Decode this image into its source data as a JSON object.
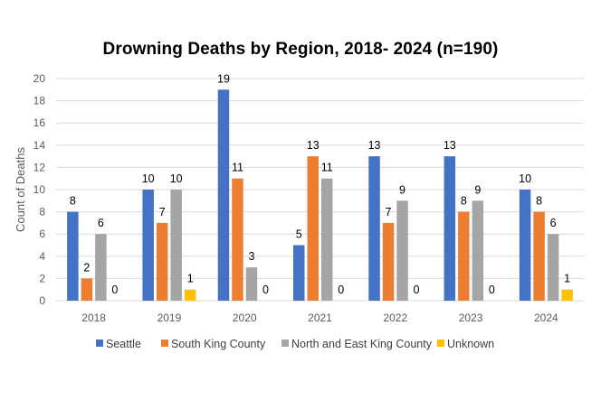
{
  "chart_data": {
    "type": "bar",
    "title": "Drowning Deaths by Region,  2018- 2024 (n=190)",
    "xlabel": "",
    "ylabel": "Count of Deaths",
    "ylim": [
      0,
      20
    ],
    "yticks": [
      0,
      2,
      4,
      6,
      8,
      10,
      12,
      14,
      16,
      18,
      20
    ],
    "grid": true,
    "legend_position": "bottom",
    "categories": [
      "2018",
      "2019",
      "2020",
      "2021",
      "2022",
      "2023",
      "2024"
    ],
    "series": [
      {
        "name": "Seattle",
        "color": "#4472C4",
        "values": [
          8,
          10,
          19,
          5,
          13,
          13,
          10
        ]
      },
      {
        "name": "South King County",
        "color": "#ED7D31",
        "values": [
          2,
          7,
          11,
          13,
          7,
          8,
          8
        ]
      },
      {
        "name": "North and East King County",
        "color": "#A5A5A5",
        "values": [
          6,
          10,
          3,
          11,
          9,
          9,
          6
        ]
      },
      {
        "name": "Unknown",
        "color": "#FFC000",
        "values": [
          0,
          1,
          0,
          0,
          0,
          0,
          1
        ]
      }
    ]
  }
}
